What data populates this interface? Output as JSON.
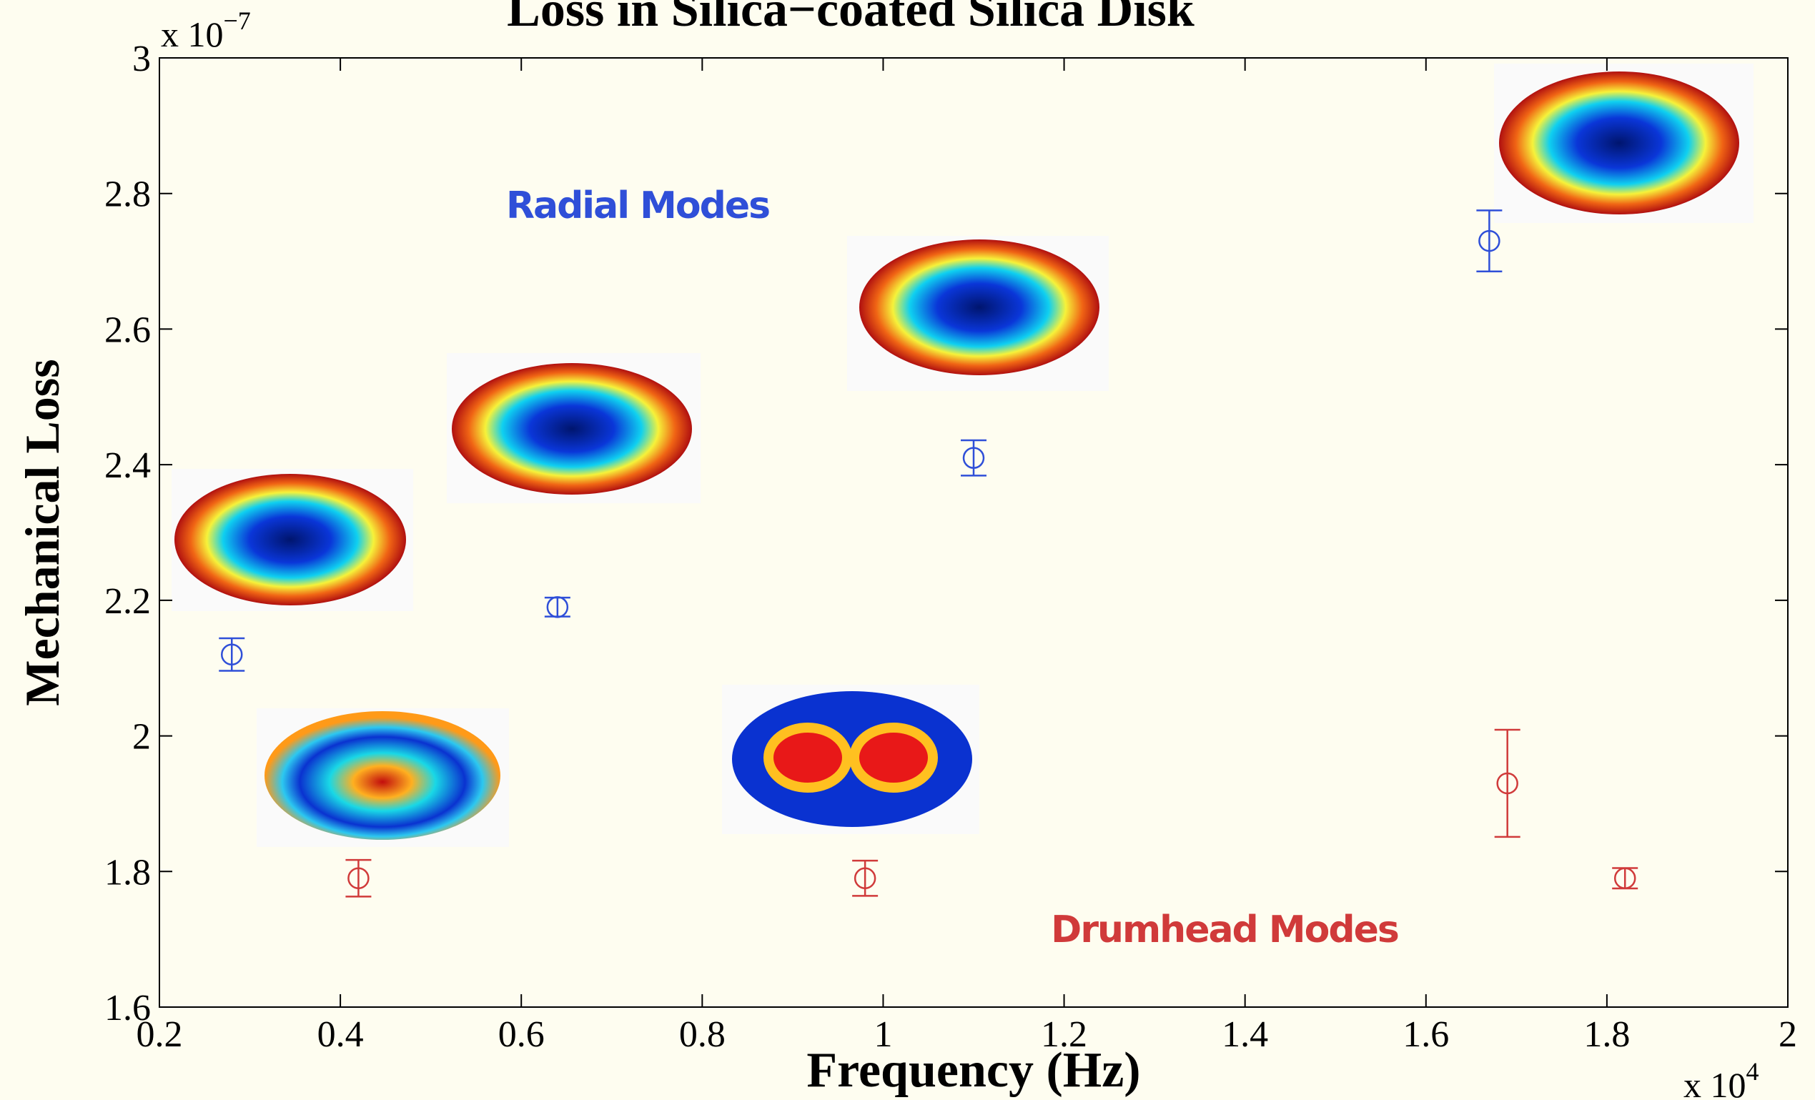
{
  "chart_data": {
    "type": "scatter",
    "title": "Loss in Silica−coated Silica Disk",
    "x_label": "Frequency (Hz)",
    "y_label": "Mechanical Loss",
    "x_multiplier": {
      "base": "x 10",
      "exponent": "4"
    },
    "y_multiplier": {
      "base": "x 10",
      "exponent": "−7"
    },
    "xlim": [
      0.2,
      2
    ],
    "ylim": [
      1.6,
      3
    ],
    "xticks": [
      0.2,
      0.4,
      0.6,
      0.8,
      1,
      1.2,
      1.4,
      1.6,
      1.8,
      2
    ],
    "yticks": [
      1.6,
      1.8,
      2,
      2.2,
      2.4,
      2.6,
      2.8,
      3
    ],
    "series": [
      {
        "name": "Radial Modes",
        "color": "#2f4fd8",
        "x": [
          0.28,
          0.64,
          1.1,
          1.67
        ],
        "values": [
          2.12,
          2.19,
          2.41,
          2.73
        ],
        "errors": [
          0.024,
          0.014,
          0.026,
          0.045
        ]
      },
      {
        "name": "Drumhead Modes",
        "color": "#d03a3a",
        "x": [
          0.42,
          0.98,
          1.69,
          1.82
        ],
        "values": [
          1.79,
          1.79,
          1.93,
          1.79
        ],
        "errors": [
          0.027,
          0.026,
          0.079,
          0.015
        ]
      }
    ]
  }
}
